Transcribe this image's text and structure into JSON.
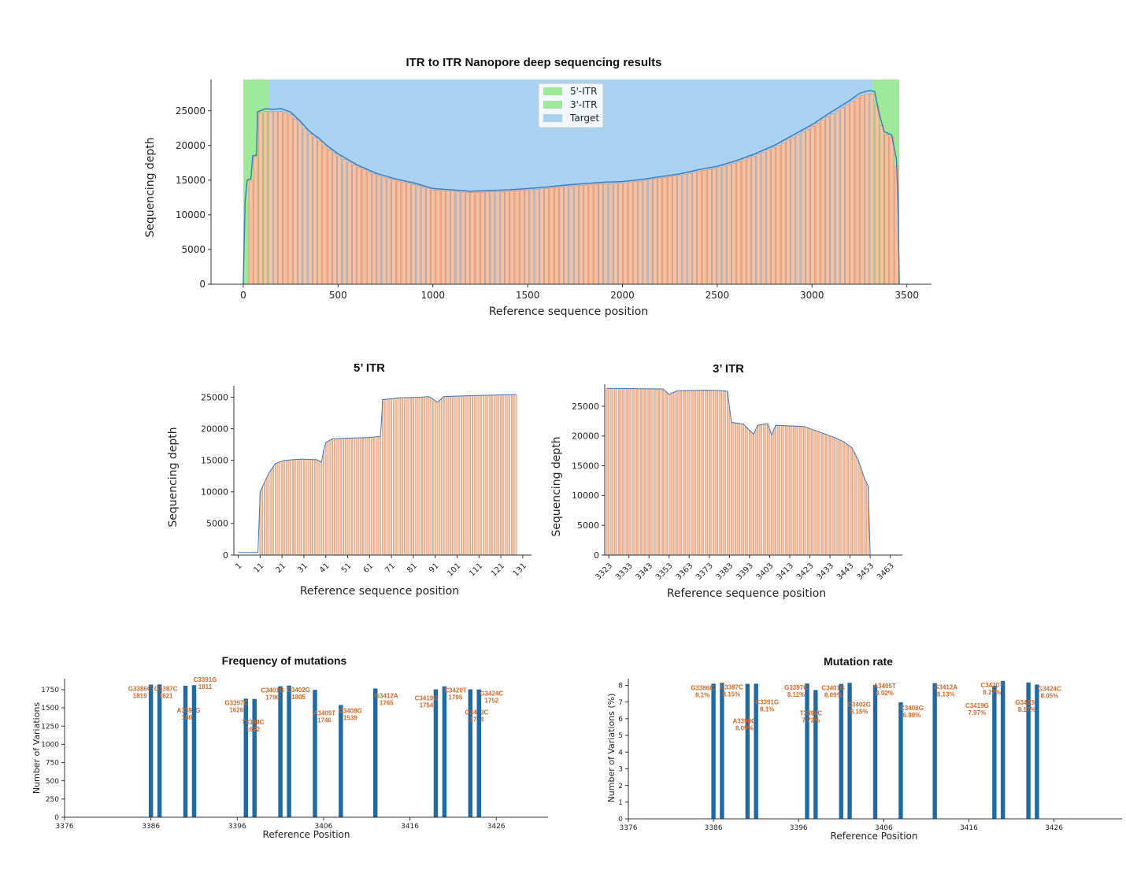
{
  "colors": {
    "itr5": "#9ee89a",
    "itr3": "#9ee89a",
    "target": "#a9d2f1",
    "bar_fill": "#f2c2a6",
    "bar_edge": "#e07a4a",
    "line": "#3b78b8",
    "mut_bar": "#1f6aa5",
    "mut_label": "#d0692a"
  },
  "chart_data": [
    {
      "id": "overview",
      "type": "area",
      "title": "ITR to ITR Nanopore deep sequencing results",
      "xlabel": "Reference sequence position",
      "ylabel": "Sequencing depth",
      "xlim": [
        -170,
        3630
      ],
      "ylim": [
        0,
        29500
      ],
      "xticks": [
        0,
        500,
        1000,
        1500,
        2000,
        2500,
        3000,
        3500
      ],
      "yticks": [
        0,
        5000,
        10000,
        15000,
        20000,
        25000
      ],
      "regions": [
        {
          "name": "5'-ITR",
          "x0": 0,
          "x1": 135,
          "color_key": "itr5"
        },
        {
          "name": "Target",
          "x0": 135,
          "x1": 3320,
          "color_key": "target"
        },
        {
          "name": "3'-ITR",
          "x0": 3320,
          "x1": 3460,
          "color_key": "itr3"
        }
      ],
      "legend": [
        "5'-ITR",
        "3'-ITR",
        "Target"
      ],
      "legend_position": "top-center",
      "depth_profile": [
        [
          0,
          0
        ],
        [
          10,
          12000
        ],
        [
          20,
          15000
        ],
        [
          40,
          15200
        ],
        [
          50,
          18500
        ],
        [
          70,
          18600
        ],
        [
          75,
          24800
        ],
        [
          90,
          25000
        ],
        [
          120,
          25300
        ],
        [
          150,
          25200
        ],
        [
          200,
          25300
        ],
        [
          250,
          24800
        ],
        [
          300,
          23500
        ],
        [
          350,
          22000
        ],
        [
          400,
          21000
        ],
        [
          450,
          19800
        ],
        [
          500,
          18800
        ],
        [
          600,
          17200
        ],
        [
          700,
          16000
        ],
        [
          800,
          15200
        ],
        [
          900,
          14600
        ],
        [
          1000,
          13800
        ],
        [
          1100,
          13600
        ],
        [
          1200,
          13400
        ],
        [
          1300,
          13500
        ],
        [
          1400,
          13600
        ],
        [
          1500,
          13800
        ],
        [
          1600,
          14000
        ],
        [
          1700,
          14300
        ],
        [
          1800,
          14500
        ],
        [
          1900,
          14700
        ],
        [
          2000,
          14800
        ],
        [
          2100,
          15100
        ],
        [
          2200,
          15500
        ],
        [
          2300,
          15900
        ],
        [
          2400,
          16500
        ],
        [
          2500,
          17000
        ],
        [
          2600,
          17800
        ],
        [
          2700,
          18800
        ],
        [
          2800,
          20000
        ],
        [
          2900,
          21500
        ],
        [
          3000,
          23000
        ],
        [
          3100,
          24800
        ],
        [
          3200,
          26500
        ],
        [
          3250,
          27500
        ],
        [
          3300,
          27900
        ],
        [
          3330,
          27800
        ],
        [
          3350,
          25000
        ],
        [
          3380,
          22000
        ],
        [
          3420,
          21500
        ],
        [
          3445,
          18000
        ],
        [
          3453,
          12000
        ],
        [
          3460,
          0
        ]
      ]
    },
    {
      "id": "itr5",
      "type": "bar",
      "title": "5’ ITR",
      "xlabel": "Reference sequence position",
      "ylabel": "Sequencing depth",
      "xlim": [
        -1,
        135
      ],
      "ylim": [
        0,
        26800
      ],
      "xticks": [
        1,
        11,
        21,
        31,
        41,
        51,
        61,
        71,
        81,
        91,
        101,
        111,
        121,
        131
      ],
      "yticks": [
        0,
        5000,
        10000,
        15000,
        20000,
        25000
      ],
      "bar_range": [
        11,
        128
      ],
      "depth_profile": [
        [
          1,
          400
        ],
        [
          10,
          400
        ],
        [
          11,
          10000
        ],
        [
          13,
          11500
        ],
        [
          15,
          13000
        ],
        [
          18,
          14500
        ],
        [
          22,
          15000
        ],
        [
          30,
          15200
        ],
        [
          37,
          15100
        ],
        [
          39,
          14700
        ],
        [
          40,
          16500
        ],
        [
          41,
          17800
        ],
        [
          44,
          18400
        ],
        [
          50,
          18500
        ],
        [
          60,
          18600
        ],
        [
          66,
          18800
        ],
        [
          67,
          24600
        ],
        [
          75,
          24900
        ],
        [
          85,
          25000
        ],
        [
          88,
          25100
        ],
        [
          90,
          24700
        ],
        [
          92,
          24200
        ],
        [
          95,
          25100
        ],
        [
          105,
          25200
        ],
        [
          115,
          25300
        ],
        [
          128,
          25400
        ]
      ]
    },
    {
      "id": "itr3",
      "type": "bar",
      "title": "3’ ITR",
      "xlabel": "Reference sequence position",
      "ylabel": "Sequencing depth",
      "xlim": [
        3321,
        3469
      ],
      "ylim": [
        0,
        28700
      ],
      "xticks": [
        3323,
        3333,
        3343,
        3353,
        3363,
        3373,
        3383,
        3393,
        3403,
        3413,
        3423,
        3433,
        3443,
        3453,
        3463
      ],
      "yticks": [
        0,
        5000,
        10000,
        15000,
        20000,
        25000
      ],
      "bar_range": [
        3322,
        3452
      ],
      "depth_profile": [
        [
          3322,
          28000
        ],
        [
          3350,
          27900
        ],
        [
          3353,
          27000
        ],
        [
          3357,
          27600
        ],
        [
          3372,
          27700
        ],
        [
          3380,
          27600
        ],
        [
          3382,
          27500
        ],
        [
          3384,
          22300
        ],
        [
          3390,
          22000
        ],
        [
          3392,
          21300
        ],
        [
          3395,
          20300
        ],
        [
          3397,
          21800
        ],
        [
          3402,
          22100
        ],
        [
          3404,
          20200
        ],
        [
          3406,
          21800
        ],
        [
          3420,
          21600
        ],
        [
          3425,
          21000
        ],
        [
          3435,
          19800
        ],
        [
          3440,
          19000
        ],
        [
          3444,
          18000
        ],
        [
          3447,
          16000
        ],
        [
          3450,
          13000
        ],
        [
          3452,
          11500
        ],
        [
          3453,
          0
        ]
      ]
    },
    {
      "id": "freq",
      "type": "bar",
      "title": "Frequency of mutations",
      "xlabel": "Reference Position",
      "ylabel": "Number of Variations",
      "xlim": [
        3376,
        3432
      ],
      "ylim": [
        0,
        1900
      ],
      "xticks": [
        3376,
        3386,
        3396,
        3406,
        3416,
        3426
      ],
      "yticks": [
        0,
        250,
        500,
        750,
        1000,
        1250,
        1500,
        1750
      ],
      "bars": [
        {
          "x": 3386,
          "value": 1819,
          "label": "G3386C",
          "sub": "1819"
        },
        {
          "x": 3387,
          "value": 1821,
          "label": "G3387C",
          "sub": "1821"
        },
        {
          "x": 3390,
          "value": 1803,
          "label": "A3390G",
          "sub": "1803"
        },
        {
          "x": 3391,
          "value": 1811,
          "label": "C3391G",
          "sub": "1811"
        },
        {
          "x": 3397,
          "value": 1626,
          "label": "G3397C",
          "sub": "1626"
        },
        {
          "x": 3398,
          "value": 1622,
          "label": "T3398C",
          "sub": "1622"
        },
        {
          "x": 3401,
          "value": 1796,
          "label": "C3401G",
          "sub": "1796"
        },
        {
          "x": 3402,
          "value": 1805,
          "label": "C3402G",
          "sub": "1805"
        },
        {
          "x": 3405,
          "value": 1746,
          "label": "A3405T",
          "sub": "1746"
        },
        {
          "x": 3408,
          "value": 1539,
          "label": "C3408G",
          "sub": "1539"
        },
        {
          "x": 3412,
          "value": 1765,
          "label": "G3412A",
          "sub": "1765"
        },
        {
          "x": 3419,
          "value": 1754,
          "label": "C3419G",
          "sub": "1754"
        },
        {
          "x": 3420,
          "value": 1795,
          "label": "C3420T",
          "sub": "1795"
        },
        {
          "x": 3423,
          "value": 1754,
          "label": "G3423C",
          "sub": "1754"
        },
        {
          "x": 3424,
          "value": 1752,
          "label": "G3424C",
          "sub": "1752"
        }
      ]
    },
    {
      "id": "rate",
      "type": "bar",
      "title": "Mutation rate",
      "xlabel": "Reference Position",
      "ylabel": "Number of Variations (%)",
      "xlim": [
        3376,
        3434
      ],
      "ylim": [
        0,
        8.4
      ],
      "xticks": [
        3376,
        3386,
        3396,
        3406,
        3416,
        3426
      ],
      "yticks": [
        0,
        1,
        2,
        3,
        4,
        5,
        6,
        7,
        8
      ],
      "bars": [
        {
          "x": 3386,
          "value": 8.1,
          "label": "G3386C",
          "sub": "8.1%"
        },
        {
          "x": 3387,
          "value": 8.15,
          "label": "G3387C",
          "sub": "8.15%"
        },
        {
          "x": 3390,
          "value": 8.09,
          "label": "A3390G",
          "sub": "8.09%"
        },
        {
          "x": 3391,
          "value": 8.1,
          "label": "C3391G",
          "sub": "8.1%"
        },
        {
          "x": 3397,
          "value": 8.11,
          "label": "G3397C",
          "sub": "8.11%"
        },
        {
          "x": 3398,
          "value": 7.72,
          "label": "T3398C",
          "sub": "7.72%"
        },
        {
          "x": 3401,
          "value": 8.09,
          "label": "C3401G",
          "sub": "8.09%"
        },
        {
          "x": 3402,
          "value": 8.15,
          "label": "C3402G",
          "sub": "8.15%"
        },
        {
          "x": 3405,
          "value": 8.02,
          "label": "A3405T",
          "sub": "8.02%"
        },
        {
          "x": 3408,
          "value": 6.98,
          "label": "C3408G",
          "sub": "6.98%"
        },
        {
          "x": 3412,
          "value": 8.13,
          "label": "G3412A",
          "sub": "8.13%"
        },
        {
          "x": 3419,
          "value": 7.97,
          "label": "C3419G",
          "sub": "7.97%"
        },
        {
          "x": 3420,
          "value": 8.27,
          "label": "C3420T",
          "sub": "8.27%"
        },
        {
          "x": 3423,
          "value": 8.17,
          "label": "G3423C",
          "sub": "8.17%"
        },
        {
          "x": 3424,
          "value": 8.05,
          "label": "G3424C",
          "sub": "8.05%"
        }
      ]
    }
  ]
}
